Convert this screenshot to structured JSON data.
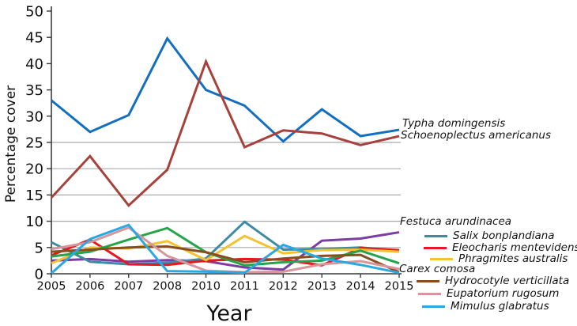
{
  "chart_data": {
    "type": "line",
    "title": "",
    "xlabel": "Year",
    "ylabel": "Percentage cover",
    "ylim": [
      0,
      50
    ],
    "y_ticks": [
      "0",
      "5",
      "10",
      "15",
      "20",
      "25",
      "30",
      "35",
      "40",
      "45",
      "50"
    ],
    "gridlines_at": [
      5,
      10,
      15,
      20,
      25
    ],
    "grid": "horizontal only, gray, no gridlines above 25",
    "legend_position": "right of plot; top two and two cluster names label line ends directly, others have line swatches",
    "categories": [
      "2005",
      "2006",
      "2007",
      "2008",
      "2010",
      "2011",
      "2012",
      "2013",
      "2014",
      "2015"
    ],
    "series": [
      {
        "name": "Typha domingensis",
        "color": "#146fc0",
        "values": [
          33.0,
          27.0,
          30.2,
          44.8,
          35.0,
          32.0,
          25.2,
          31.3,
          26.2,
          27.4
        ]
      },
      {
        "name": "Schoenoplectus americanus",
        "color": "#a8413c",
        "values": [
          14.5,
          22.4,
          13.0,
          19.8,
          40.4,
          24.1,
          27.3,
          26.7,
          24.5,
          26.2
        ]
      },
      {
        "name": "Festuca arundinacea",
        "color": "#7d3ca3",
        "values": [
          2.5,
          2.8,
          2.3,
          2.6,
          2.4,
          1.2,
          0.8,
          6.3,
          6.7,
          7.9
        ]
      },
      {
        "name": "Salix bonplandiana",
        "color": "#3d8ca4",
        "values": [
          6.0,
          2.3,
          1.8,
          2.1,
          2.9,
          9.9,
          4.6,
          4.7,
          5.0,
          4.4
        ]
      },
      {
        "name": "Eleocharis mentevidensis",
        "color": "#e8161f",
        "values": [
          3.5,
          6.5,
          1.8,
          1.7,
          2.5,
          2.8,
          2.7,
          1.6,
          4.9,
          4.5
        ]
      },
      {
        "name": "Phragmites australis",
        "color": "#f2c231",
        "values": [
          2.0,
          5.0,
          4.8,
          6.2,
          2.6,
          7.2,
          3.9,
          4.5,
          4.6,
          4.2
        ]
      },
      {
        "name": "Carex comosa",
        "color": "#25a549",
        "values": [
          3.3,
          4.2,
          6.5,
          8.7,
          4.1,
          1.6,
          2.2,
          2.5,
          4.4,
          2.0
        ]
      },
      {
        "name": "Hydrocotyle verticillata",
        "color": "#8a4d1f",
        "values": [
          4.2,
          4.6,
          5.0,
          5.2,
          4.1,
          2.2,
          2.9,
          3.4,
          3.6,
          0.3
        ]
      },
      {
        "name": "Eupatorium rugosum",
        "color": "#d6969c",
        "values": [
          4.7,
          6.0,
          8.8,
          3.4,
          0.6,
          0.3,
          0.4,
          1.8,
          2.4,
          0.9
        ]
      },
      {
        "name": "Mimulus glabratus",
        "color": "#29a8e2",
        "values": [
          0.1,
          6.6,
          9.3,
          0.5,
          0.4,
          0.2,
          5.5,
          2.9,
          1.7,
          0.2
        ]
      }
    ]
  }
}
